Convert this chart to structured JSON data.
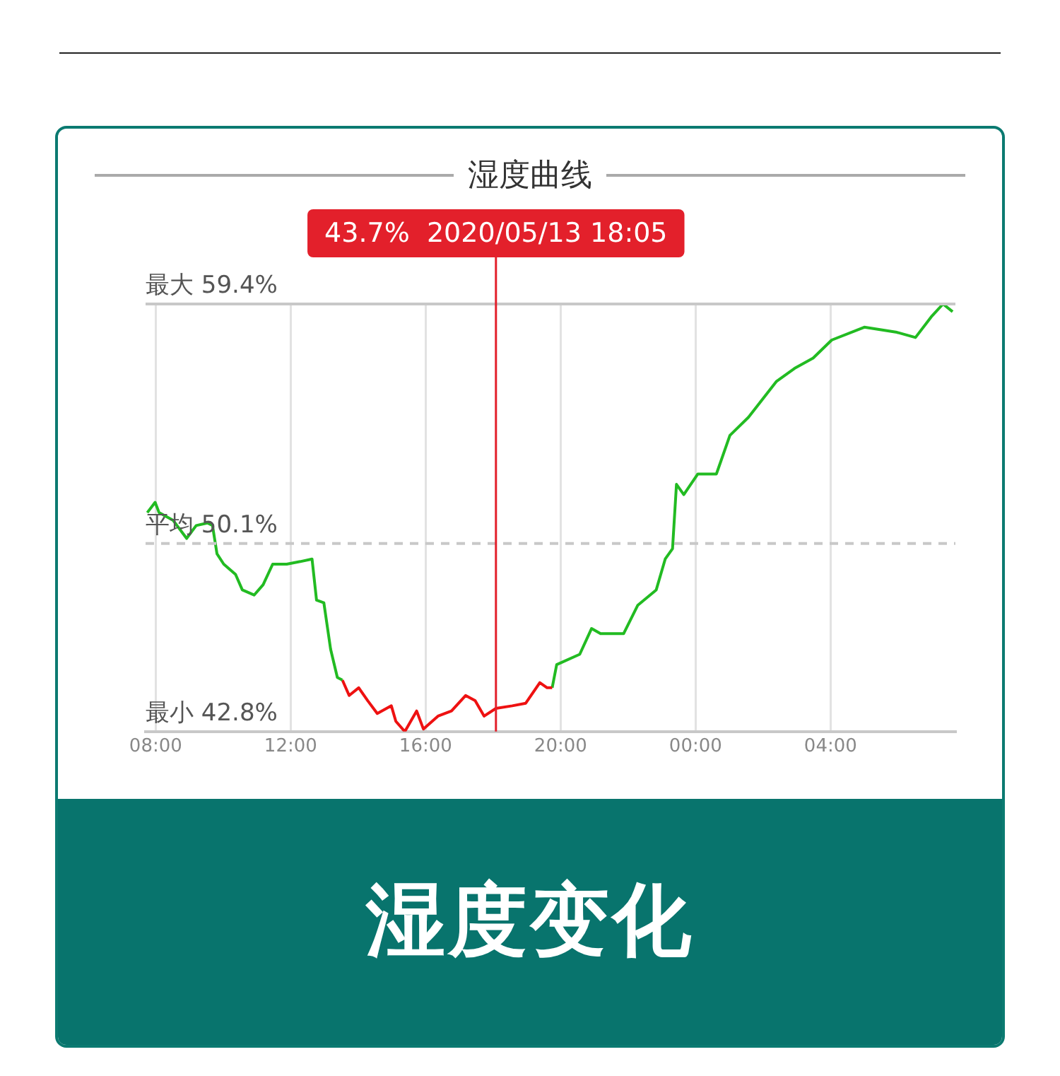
{
  "chart_data": {
    "type": "line",
    "title": "湿度曲线",
    "xlim": [
      "2020-05-13T07:42",
      "2020-05-14T07:42"
    ],
    "ylim": [
      42.8,
      59.4
    ],
    "xticks": [
      {
        "value": "2020-05-13T08:00",
        "label": "08:00"
      },
      {
        "value": "2020-05-13T12:00",
        "label": "12:00"
      },
      {
        "value": "2020-05-13T16:00",
        "label": "16:00"
      },
      {
        "value": "2020-05-13T20:00",
        "label": "20:00"
      },
      {
        "value": "2020-05-14T00:00",
        "label": "00:00"
      },
      {
        "value": "2020-05-14T04:00",
        "label": "04:00"
      }
    ],
    "tick_labels": "x",
    "grid": "x",
    "legend": false,
    "marker": "none",
    "series": [
      {
        "color": "#22bb22",
        "x": [
          "2020-05-13T07:45",
          "2020-05-13T07:59",
          "2020-05-13T08:06",
          "2020-05-13T08:31",
          "2020-05-13T08:55",
          "2020-05-13T09:12",
          "2020-05-13T09:32",
          "2020-05-13T09:41",
          "2020-05-13T09:49",
          "2020-05-13T10:01",
          "2020-05-13T10:22",
          "2020-05-13T10:34",
          "2020-05-13T10:55",
          "2020-05-13T11:11",
          "2020-05-13T11:28",
          "2020-05-13T11:53",
          "2020-05-13T12:17",
          "2020-05-13T12:38",
          "2020-05-13T12:46",
          "2020-05-13T12:59",
          "2020-05-13T13:11",
          "2020-05-13T13:23",
          "2020-05-13T13:32"
        ],
        "values": [
          51.3,
          51.7,
          51.3,
          51.0,
          50.3,
          50.8,
          50.9,
          50.8,
          49.7,
          49.3,
          48.9,
          48.3,
          48.1,
          48.5,
          49.3,
          49.3,
          49.4,
          49.5,
          47.9,
          47.8,
          46.0,
          44.9,
          44.8
        ]
      },
      {
        "color": "#ee1111",
        "x": [
          "2020-05-13T13:32",
          "2020-05-13T13:44",
          "2020-05-13T14:01",
          "2020-05-13T14:17",
          "2020-05-13T14:34",
          "2020-05-13T14:59",
          "2020-05-13T15:07",
          "2020-05-13T15:23",
          "2020-05-13T15:44",
          "2020-05-13T15:56",
          "2020-05-13T16:22",
          "2020-05-13T16:46",
          "2020-05-13T17:11",
          "2020-05-13T17:28",
          "2020-05-13T17:44",
          "2020-05-13T18:05",
          "2020-05-13T18:34",
          "2020-05-13T18:58",
          "2020-05-13T19:23",
          "2020-05-13T19:36",
          "2020-05-13T19:45"
        ],
        "values": [
          44.8,
          44.2,
          44.5,
          44.0,
          43.5,
          43.8,
          43.2,
          42.8,
          43.6,
          42.9,
          43.4,
          43.6,
          44.2,
          44.0,
          43.4,
          43.7,
          43.8,
          43.9,
          44.7,
          44.5,
          44.5
        ]
      },
      {
        "color": "#22bb22",
        "x": [
          "2020-05-13T19:45",
          "2020-05-13T19:53",
          "2020-05-13T20:34",
          "2020-05-13T20:55",
          "2020-05-13T21:11",
          "2020-05-13T21:52",
          "2020-05-13T22:17",
          "2020-05-13T22:50",
          "2020-05-13T23:06",
          "2020-05-13T23:19",
          "2020-05-13T23:26",
          "2020-05-13T23:39",
          "2020-05-14T00:04",
          "2020-05-14T00:37",
          "2020-05-14T01:01",
          "2020-05-14T01:34",
          "2020-05-14T02:24",
          "2020-05-14T02:56",
          "2020-05-14T03:29",
          "2020-05-14T04:02",
          "2020-05-14T05:00",
          "2020-05-14T05:58",
          "2020-05-14T06:31",
          "2020-05-14T06:59",
          "2020-05-14T07:20",
          "2020-05-14T07:37"
        ],
        "values": [
          44.5,
          45.4,
          45.8,
          46.8,
          46.6,
          46.6,
          47.7,
          48.3,
          49.5,
          49.9,
          52.4,
          52.0,
          52.8,
          52.8,
          54.3,
          55.0,
          56.4,
          56.9,
          57.3,
          58.0,
          58.5,
          58.3,
          58.1,
          58.9,
          59.4,
          59.1
        ]
      }
    ],
    "ref_lines": [
      {
        "axis": "y",
        "value": 59.4,
        "label": "最大 59.4%",
        "color": "#c8c8c8",
        "line_style": "solid"
      },
      {
        "axis": "y",
        "value": 50.1,
        "label": "平均 50.1%",
        "color": "#c8c8c8",
        "line_style": "dashed"
      },
      {
        "axis": "x",
        "value": "2020-05-13T18:05",
        "label": "43.7%  2020/05/13 18:05",
        "color": "#e3202b",
        "line_style": "solid"
      }
    ],
    "subtitle": "湿度变化",
    "annotations": [
      "最小 42.8%"
    ]
  }
}
